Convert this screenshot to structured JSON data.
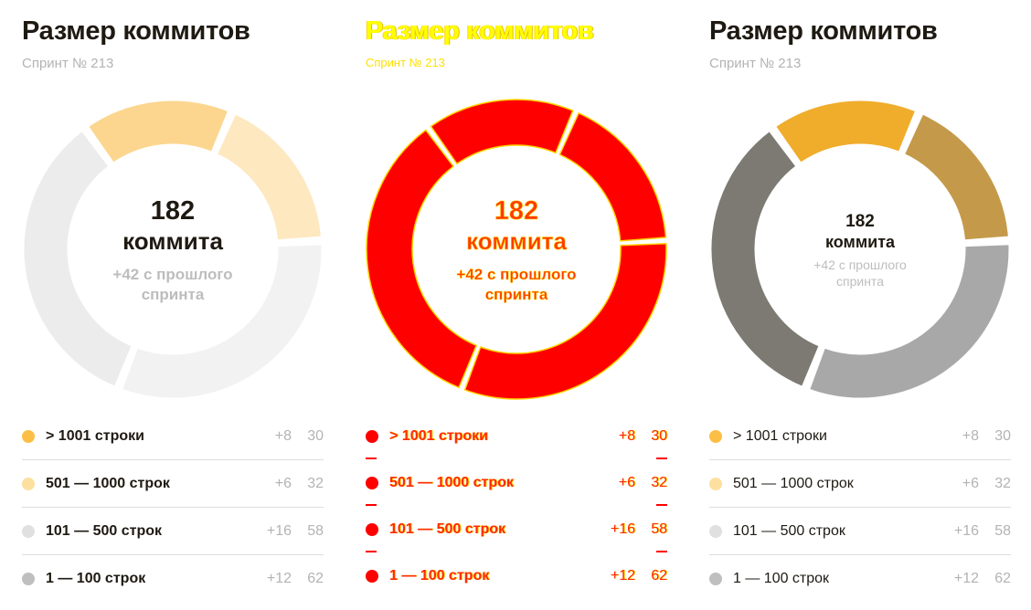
{
  "panels": [
    {
      "title": "Размер коммитов",
      "subtitle": "Спринт № 213",
      "center_value": "182",
      "center_label": "коммита",
      "center_delta_line1": "+42 с прошлого",
      "center_delta_line2": "спринта",
      "colors": [
        "#fcd48a",
        "#fde7bd",
        "#f2f2f2",
        "#ececec"
      ]
    },
    {
      "title": "Размер коммитов",
      "subtitle": "Спринт № 213",
      "center_value": "182",
      "center_label": "коммита",
      "center_delta_line1": "+42 с прошлого",
      "center_delta_line2": "спринта",
      "colors": [
        "#ff0000",
        "#ff0000",
        "#ff0000",
        "#ff0000"
      ]
    },
    {
      "title": "Размер коммитов",
      "subtitle": "Спринт № 213",
      "center_value": "182",
      "center_label": "коммита",
      "center_delta_line1": "+42 с прошлого",
      "center_delta_line2": "спринта",
      "colors": [
        "#f0ad2b",
        "#c49a4a",
        "#a8a8a8",
        "#7c7a72"
      ]
    }
  ],
  "legend": [
    {
      "label": "> 1001 строки",
      "delta": "+8",
      "count": "30",
      "dot": "#fcbf45"
    },
    {
      "label": "501 — 1000 строк",
      "delta": "+6",
      "count": "32",
      "dot": "#fde0a0"
    },
    {
      "label": "101 — 500 строк",
      "delta": "+16",
      "count": "58",
      "dot": "#e0e0e0"
    },
    {
      "label": "1 — 100 строк",
      "delta": "+12",
      "count": "62",
      "dot": "#bfbfbf"
    }
  ],
  "chart_data": [
    {
      "type": "pie",
      "title": "Размер коммитов",
      "subtitle": "Спринт № 213",
      "total": 182,
      "total_delta": 42,
      "categories": [
        "> 1001 строки",
        "501 — 1000 строк",
        "101 — 500 строк",
        "1 — 100 строк"
      ],
      "values": [
        30,
        32,
        58,
        62
      ],
      "deltas": [
        8,
        6,
        16,
        12
      ]
    },
    {
      "type": "pie",
      "title": "Размер коммитов",
      "subtitle": "Спринт № 213",
      "total": 182,
      "total_delta": 42,
      "categories": [
        "> 1001 строки",
        "501 — 1000 строк",
        "101 — 500 строк",
        "1 — 100 строк"
      ],
      "values": [
        30,
        32,
        58,
        62
      ],
      "deltas": [
        8,
        6,
        16,
        12
      ]
    },
    {
      "type": "pie",
      "title": "Размер коммитов",
      "subtitle": "Спринт № 213",
      "total": 182,
      "total_delta": 42,
      "categories": [
        "> 1001 строки",
        "501 — 1000 строк",
        "101 — 500 строк",
        "1 — 100 строк"
      ],
      "values": [
        30,
        32,
        58,
        62
      ],
      "deltas": [
        8,
        6,
        16,
        12
      ]
    }
  ]
}
